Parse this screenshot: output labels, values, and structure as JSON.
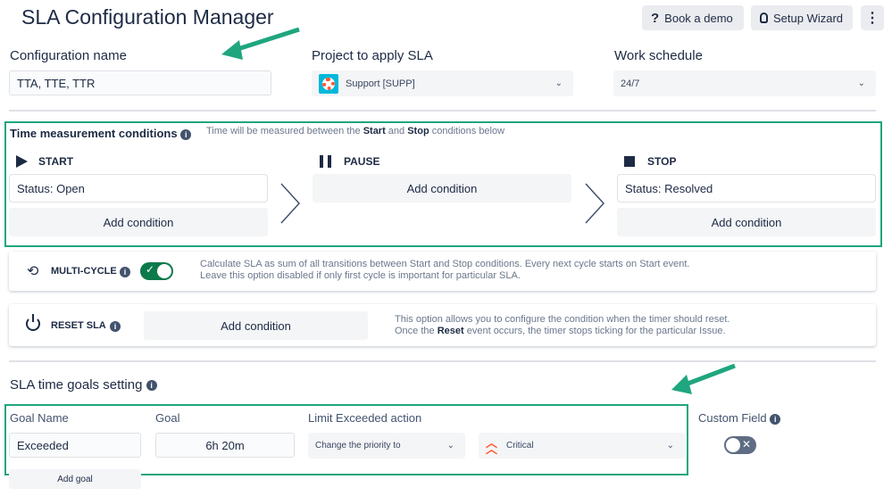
{
  "header": {
    "title": "SLA Configuration Manager",
    "book_demo": "Book a demo",
    "setup_wizard": "Setup Wizard"
  },
  "config": {
    "name_label": "Configuration name",
    "name_value": "TTA, TTE, TTR",
    "project_label": "Project to apply SLA",
    "project_value": "Support [SUPP]",
    "schedule_label": "Work schedule",
    "schedule_value": "24/7"
  },
  "time": {
    "title": "Time measurement conditions",
    "hint_pre": "Time will be measured between the ",
    "hint_start": "Start",
    "hint_mid": " and ",
    "hint_stop": "Stop",
    "hint_post": " conditions below",
    "start": {
      "label": "START",
      "condition": "Status: Open",
      "add": "Add condition"
    },
    "pause": {
      "label": "PAUSE",
      "add": "Add condition"
    },
    "stop": {
      "label": "STOP",
      "condition": "Status: Resolved",
      "add": "Add condition"
    }
  },
  "multicycle": {
    "label": "MULTI-CYCLE",
    "enabled": true,
    "line1": "Calculate SLA as sum of all transitions between Start and Stop conditions. Every next cycle starts on Start event.",
    "line2": "Leave this option disabled if only first cycle is important for particular SLA."
  },
  "reset": {
    "label": "RESET SLA",
    "add": "Add condition",
    "line1": "This option allows you to configure the condition when the timer should reset.",
    "line2_pre": "Once the ",
    "line2_bold": "Reset",
    "line2_post": " event occurs, the timer stops ticking for the particular Issue."
  },
  "goals": {
    "title": "SLA time goals setting",
    "goal_name_label": "Goal Name",
    "goal_label": "Goal",
    "limit_label": "Limit Exceeded action",
    "custom_field_label": "Custom Field",
    "goal_name_value": "Exceeded",
    "goal_value": "6h 20m",
    "action_value": "Change the priority to",
    "priority_value": "Critical",
    "custom_field_enabled": false,
    "add_goal": "Add goal"
  },
  "colors": {
    "accent": "#1fa67f",
    "toggle_on": "#0b7a4b",
    "priority_critical": "#ff5630"
  }
}
